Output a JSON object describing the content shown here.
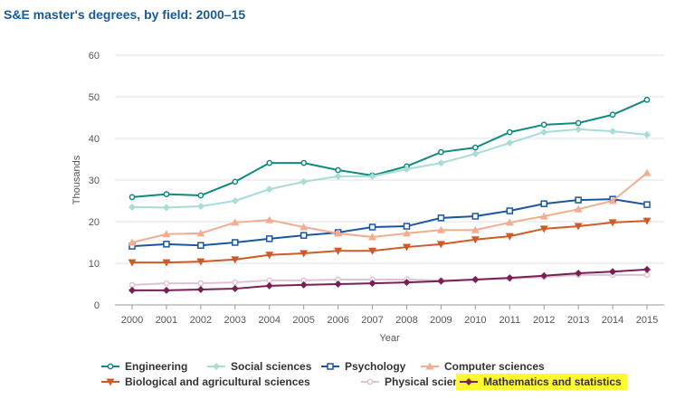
{
  "chart_data": {
    "type": "line",
    "title": "S&E master's degrees, by field: 2000–15",
    "xlabel": "Year",
    "ylabel": "Thousands",
    "ylim": [
      0,
      60
    ],
    "yticks": [
      0,
      10,
      20,
      30,
      40,
      50,
      60
    ],
    "grid": true,
    "legend": "bottom",
    "x": [
      2000,
      2001,
      2002,
      2003,
      2004,
      2005,
      2006,
      2007,
      2008,
      2009,
      2010,
      2011,
      2012,
      2013,
      2014,
      2015
    ],
    "series": [
      {
        "name": "Engineering",
        "color": "#0e8a7e",
        "marker": "circle",
        "values": [
          25.9,
          26.6,
          26.3,
          29.6,
          34.1,
          34.1,
          32.4,
          31.1,
          33.3,
          36.7,
          37.8,
          41.5,
          43.3,
          43.7,
          45.7,
          49.3
        ]
      },
      {
        "name": "Social sciences",
        "color": "#a8dcd6",
        "marker": "diamond",
        "values": [
          23.5,
          23.4,
          23.7,
          25.0,
          27.8,
          29.6,
          30.9,
          30.9,
          32.6,
          34.1,
          36.3,
          38.9,
          41.5,
          42.2,
          41.7,
          40.9
        ]
      },
      {
        "name": "Psychology",
        "color": "#1c55a0",
        "marker": "square",
        "values": [
          14.1,
          14.6,
          14.3,
          15.0,
          15.9,
          16.7,
          17.4,
          18.7,
          18.9,
          20.9,
          21.3,
          22.6,
          24.3,
          25.2,
          25.4,
          24.1
        ]
      },
      {
        "name": "Computer sciences",
        "color": "#f2ad90",
        "marker": "triangle-up",
        "values": [
          15.0,
          17.0,
          17.2,
          19.8,
          20.4,
          18.7,
          17.2,
          16.3,
          17.2,
          18.0,
          18.0,
          19.8,
          21.3,
          23.0,
          25.0,
          31.7
        ]
      },
      {
        "name": "Biological and agricultural sciences",
        "color": "#cf5a26",
        "marker": "triangle-down",
        "values": [
          10.2,
          10.2,
          10.4,
          10.9,
          12.0,
          12.4,
          13.0,
          13.0,
          13.9,
          14.6,
          15.7,
          16.5,
          18.3,
          18.9,
          19.8,
          20.2
        ]
      },
      {
        "name": "Physical sciences",
        "color": "#dfc3d3",
        "marker": "circle",
        "values": [
          4.8,
          5.2,
          5.2,
          5.4,
          5.9,
          5.9,
          6.1,
          6.1,
          6.1,
          5.9,
          6.1,
          6.3,
          6.7,
          7.2,
          7.2,
          7.2
        ]
      },
      {
        "name": "Mathematics and statistics",
        "color": "#7a1f56",
        "marker": "diamond",
        "highlight": "#fff833",
        "values": [
          3.5,
          3.5,
          3.7,
          3.9,
          4.6,
          4.8,
          5.0,
          5.2,
          5.4,
          5.7,
          6.1,
          6.5,
          7.0,
          7.6,
          8.0,
          8.5
        ]
      }
    ]
  }
}
